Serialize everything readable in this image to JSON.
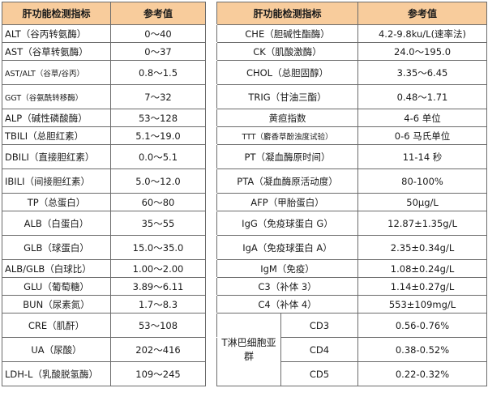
{
  "headers": {
    "left_indicator": "肝功能检测指标",
    "left_reference": "参考值",
    "right_indicator": "肝功能检测指标",
    "right_reference": "参考值"
  },
  "left_rows": [
    {
      "name": "ALT（谷丙转氨酶）",
      "value": "0～40"
    },
    {
      "name": "AST（谷草转氨酶）",
      "value": "0～37"
    },
    {
      "name": "AST/ALT（谷草/谷丙）",
      "value": "0.8～1.5"
    },
    {
      "name": "GGT（谷氨酰转移酶）",
      "value": "7～32"
    },
    {
      "name": "ALP（碱性磷酸酶）",
      "value": "53～128"
    },
    {
      "name": "TBILI（总胆红素）",
      "value": "5.1～19.0"
    },
    {
      "name": "DBILI（直接胆红素）",
      "value": "0.0～5.1"
    },
    {
      "name": "IBILI（间接胆红素）",
      "value": "5.0～12.0"
    },
    {
      "name": "TP（总蛋白）",
      "value": "60～80"
    },
    {
      "name": "ALB（白蛋白）",
      "value": "35～55"
    },
    {
      "name": "GLB（球蛋白）",
      "value": "15.0～35.0"
    },
    {
      "name": "ALB/GLB（白球比）",
      "value": "1.00～2.00"
    },
    {
      "name": "GLU（葡萄糖）",
      "value": "3.89～6.11"
    },
    {
      "name": "BUN（尿素氮）",
      "value": "1.7～8.3"
    },
    {
      "name": "CRE（肌酐）",
      "value": "53～108"
    },
    {
      "name": "UA（尿酸）",
      "value": "202～416"
    },
    {
      "name": "LDH-L（乳酸脱氢酶）",
      "value": "109～245"
    }
  ],
  "right_rows": [
    {
      "name": "CHE（胆碱性酯酶）",
      "value": "4.2-9.8ku/L(速率法)"
    },
    {
      "name": "CK（肌酸激酶）",
      "value": "24.0～195.0"
    },
    {
      "name": "CHOL（总胆固醇）",
      "value": "3.35～6.45"
    },
    {
      "name": "TRIG（甘油三酯）",
      "value": "0.48～1.71"
    },
    {
      "name": "黄疸指数",
      "value": "4-6 单位"
    },
    {
      "name": "TTT（麝香草酚浊度试验）",
      "value": "0-6 马氏单位"
    },
    {
      "name": "PT（凝血酶原时间）",
      "value": "11-14 秒"
    },
    {
      "name": "PTA（凝血酶原活动度）",
      "value": "80-100%"
    },
    {
      "name": "AFP（甲胎蛋白）",
      "value": "50μg/L"
    },
    {
      "name": "IgG（免疫球蛋白 G）",
      "value": "12.87±1.35g/L"
    },
    {
      "name": "IgA（免疫球蛋白 A）",
      "value": "2.35±0.34g/L"
    },
    {
      "name": "IgM（免疫）",
      "value": "1.08±0.24g/L"
    },
    {
      "name": "C3（补体 3）",
      "value": "1.14±0.27g/L"
    },
    {
      "name": "C4（补体 4）",
      "value": "553±109mg/L"
    }
  ],
  "lymph_group": {
    "label": "T淋巴细胞亚群",
    "items": [
      {
        "name": "CD3",
        "value": "0.56-0.76%"
      },
      {
        "name": "CD4",
        "value": "0.38-0.52%"
      },
      {
        "name": "CD5",
        "value": "0.22-0.32%"
      }
    ]
  },
  "colors": {
    "header_bg": "#f8cc9c",
    "border": "#6b6b6b"
  }
}
